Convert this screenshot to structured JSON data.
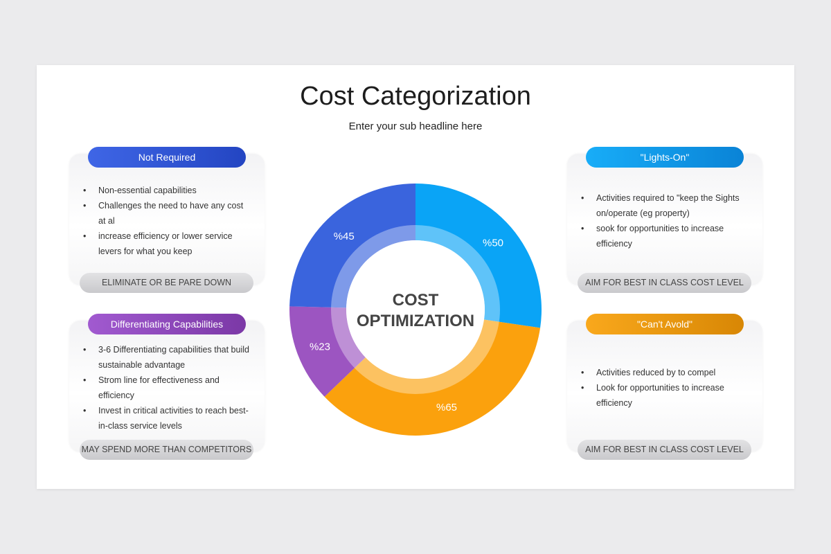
{
  "header": {
    "title": "Cost Categorization",
    "subtitle": "Enter your sub headline here"
  },
  "panels": [
    {
      "title": "Not Required",
      "bullets": [
        "Non-essential capabilities",
        "Challenges the need to have any cost at al",
        "increase efficiency  or lower service levers for what you keep"
      ],
      "footer": "ELIMINATE OR BE PARE DOWN"
    },
    {
      "title": "Differentiating Capabilities",
      "bullets": [
        "3-6 Differentiating capabilities that build sustainable advantage",
        "Strom line for effectiveness  and efficiency",
        "Invest in critical activities to reach best-in-class service levels"
      ],
      "footer": "MAY SPEND MORE THAN COMPETITORS"
    },
    {
      "title": "\"Lights-On\"",
      "bullets": [
        "Activities required to \"keep the Sights on/operate (eg property)",
        "sook for opportunities to increase efficiency"
      ],
      "footer": "AIM FOR BEST IN CLASS COST LEVEL"
    },
    {
      "title": "\"Can't Avold\"",
      "bullets": [
        "Activities reduced by to compel",
        "Look for opportunities to increase efficiency"
      ],
      "footer": "AIM FOR BEST IN CLASS COST LEVEL"
    }
  ],
  "chart_data": {
    "type": "donut",
    "values": [
      50,
      65,
      23,
      45
    ],
    "value_labels": [
      "%50",
      "%65",
      "%23",
      "%45"
    ],
    "colors": [
      "#0aa4f6",
      "#fba10d",
      "#9c55c1",
      "#3a64dd"
    ],
    "center_label": [
      "COST",
      "OPTIMIZATION"
    ]
  }
}
